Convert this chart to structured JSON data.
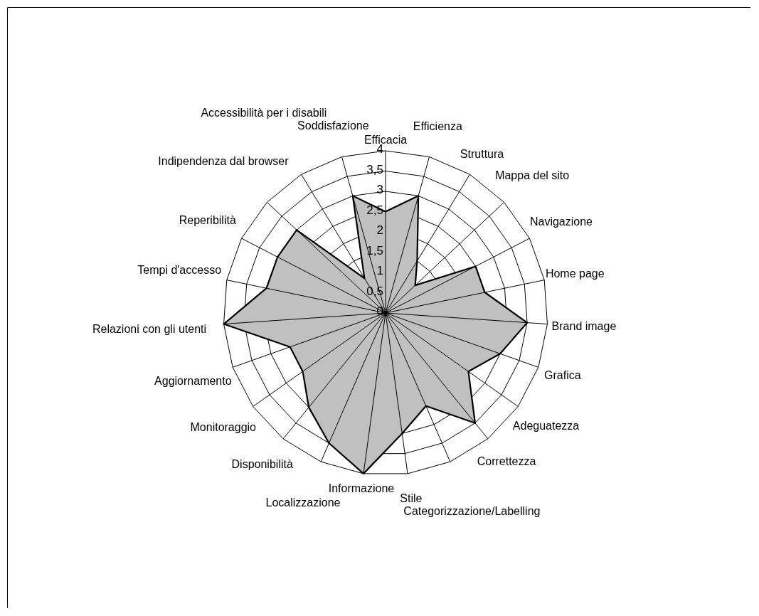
{
  "chart_data": {
    "type": "radar",
    "categories": [
      "Efficacia",
      "Efficienza",
      "Struttura",
      "Mappa del sito",
      "Navigazione",
      "Home page",
      "Brand image",
      "Grafica",
      "Adeguatezza",
      "Correttezza",
      "Categorizzazione/Labelling",
      "Stile",
      "Informazione",
      "Localizzazione",
      "Disponibilità",
      "Monitoraggio",
      "Aggiornamento",
      "Relazioni con gli utenti",
      "Tempi d'accesso",
      "Reperibilità",
      "Indipendenza dal browser",
      "Accessibilità per i disabili",
      "Soddisfazione"
    ],
    "series": [
      {
        "color": "#c0c0c0",
        "values": [
          2.5,
          3,
          1.5,
          1,
          2.5,
          2.5,
          3.5,
          3,
          2.5,
          3.5,
          2.5,
          3,
          4,
          3.5,
          3,
          2.5,
          2.5,
          4,
          3,
          3,
          3,
          1,
          3
        ]
      }
    ],
    "ylim": [
      0,
      4
    ],
    "yticks": [
      0,
      {
        "value": 0.5,
        "label": "0,5"
      },
      1,
      {
        "value": 1.5,
        "label": "1,5"
      },
      2,
      {
        "value": 2.5,
        "label": "2,5"
      },
      3,
      {
        "value": 3.5,
        "label": "3,5"
      },
      4
    ],
    "grid": true
  }
}
